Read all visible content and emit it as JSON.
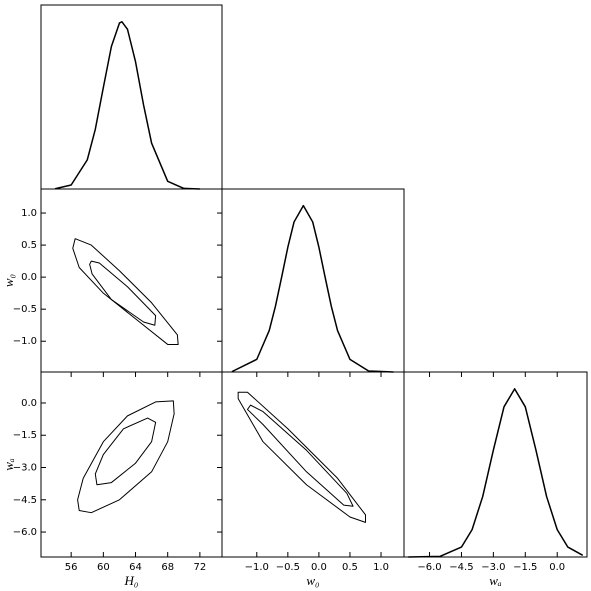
{
  "chart_data": [
    {
      "type": "line",
      "color": "#000000",
      "xlim": [
        52.25,
        74.75
      ],
      "ylim": [
        0,
        1.1
      ],
      "x": [
        54,
        56,
        58,
        59,
        60,
        61,
        62,
        62.3,
        63,
        64,
        65,
        66,
        68,
        70,
        72
      ],
      "values": [
        0.0015,
        0.024,
        0.174,
        0.357,
        0.607,
        0.852,
        0.992,
        1,
        0.955,
        0.761,
        0.502,
        0.274,
        0.046,
        0.0037,
        0.0001
      ]
    },
    {
      "type": "contour",
      "color": "#000000",
      "xlim": [
        52.25,
        74.75
      ],
      "ylim": [
        -1.48,
        1.375
      ],
      "ylabel": "w₀",
      "yticks": [
        {
          "value": 1.0,
          "label": "1.0"
        },
        {
          "value": 0.5,
          "label": "0.5"
        },
        {
          "value": 0.0,
          "label": "0.0"
        },
        {
          "value": -0.5,
          "label": "−0.5"
        },
        {
          "value": -1.0,
          "label": "−1.0"
        }
      ],
      "contours": [
        {
          "x": [
            56.5,
            58.5,
            62,
            66,
            69.2,
            69.3,
            68,
            64.5,
            60,
            57,
            56.2
          ],
          "y": [
            0.6,
            0.5,
            0.1,
            -0.4,
            -0.9,
            -1.05,
            -1.05,
            -0.7,
            -0.25,
            0.15,
            0.45
          ]
        },
        {
          "x": [
            58.5,
            59.5,
            63,
            66.5,
            66.4,
            65,
            61,
            58.6,
            58.3
          ],
          "y": [
            0.25,
            0.22,
            -0.15,
            -0.6,
            -0.75,
            -0.7,
            -0.35,
            0.05,
            0.2
          ]
        }
      ]
    },
    {
      "type": "line",
      "color": "#000000",
      "xlim": [
        -1.56,
        1.37
      ],
      "ylim": [
        0,
        1.1
      ],
      "x": [
        -1.4,
        -1.0,
        -0.8,
        -0.7,
        -0.6,
        -0.5,
        -0.4,
        -0.25,
        -0.1,
        0,
        0.1,
        0.2,
        0.3,
        0.5,
        0.8,
        1.2
      ],
      "values": [
        0.0023,
        0.076,
        0.249,
        0.395,
        0.57,
        0.75,
        0.902,
        1,
        0.902,
        0.75,
        0.57,
        0.395,
        0.249,
        0.076,
        0.006,
        0.0001
      ]
    },
    {
      "type": "contour",
      "color": "#000000",
      "xlim": [
        52.25,
        74.75
      ],
      "ylim": [
        -7.16,
        1.44
      ],
      "xlabel": "H₀",
      "ylabel": "wₐ",
      "xticks": [
        56,
        60,
        64,
        68,
        72
      ],
      "yticks": [
        {
          "value": 0.0,
          "label": "0.0"
        },
        {
          "value": -1.5,
          "label": "−1.5"
        },
        {
          "value": -3.0,
          "label": "−3.0"
        },
        {
          "value": -4.5,
          "label": "−4.5"
        },
        {
          "value": -6.0,
          "label": "−6.0"
        }
      ],
      "contours": [
        {
          "x": [
            56.8,
            57.5,
            60,
            63,
            66.5,
            68.7,
            68.8,
            68,
            66,
            62,
            58.5,
            57
          ],
          "y": [
            -4.5,
            -3.5,
            -1.8,
            -0.6,
            0.05,
            0.1,
            -0.5,
            -1.8,
            -3.2,
            -4.5,
            -5.1,
            -5.0
          ]
        },
        {
          "x": [
            59,
            60,
            62.5,
            65.5,
            66.5,
            66,
            64,
            61,
            59.2
          ],
          "y": [
            -3.3,
            -2.4,
            -1.2,
            -0.7,
            -0.9,
            -1.8,
            -2.8,
            -3.7,
            -3.8
          ]
        }
      ]
    },
    {
      "type": "contour",
      "color": "#000000",
      "xlim": [
        -1.56,
        1.37
      ],
      "ylim": [
        -7.16,
        1.44
      ],
      "xlabel": "w₀",
      "xticks": [
        {
          "value": -1.0,
          "label": "−1.0"
        },
        {
          "value": -0.5,
          "label": "−0.5"
        },
        {
          "value": 0.0,
          "label": "0.0"
        },
        {
          "value": 0.5,
          "label": "0.5"
        },
        {
          "value": 1.0,
          "label": "1.0"
        }
      ],
      "contours": [
        {
          "x": [
            -1.3,
            -1.15,
            -0.5,
            0.3,
            0.75,
            0.75,
            0.5,
            -0.2,
            -0.9,
            -1.3
          ],
          "y": [
            0.5,
            0.5,
            -1.2,
            -3.5,
            -5.2,
            -5.55,
            -5.3,
            -3.8,
            -1.8,
            0.2
          ]
        },
        {
          "x": [
            -1.1,
            -0.9,
            -0.2,
            0.45,
            0.55,
            0.4,
            -0.2,
            -0.9,
            -1.15
          ],
          "y": [
            -0.1,
            -0.4,
            -2.2,
            -4.2,
            -4.8,
            -4.75,
            -3.2,
            -1.0,
            -0.3
          ]
        }
      ]
    },
    {
      "type": "line",
      "color": "#000000",
      "xlim": [
        -7.2,
        1.4
      ],
      "ylim": [
        0,
        1.1
      ],
      "xlabel": "wₐ",
      "xticks": [
        {
          "value": -6.0,
          "label": "−6.0"
        },
        {
          "value": -4.5,
          "label": "−4.5"
        },
        {
          "value": -3.0,
          "label": "−3.0"
        },
        {
          "value": -1.5,
          "label": "−1.5"
        },
        {
          "value": 0.0,
          "label": "0.0"
        }
      ],
      "x": [
        -7,
        -5.5,
        -4.5,
        -4,
        -3.5,
        -3,
        -2.5,
        -2,
        -1.5,
        -1,
        -0.5,
        0,
        0.5,
        1.2
      ],
      "values": [
        0.0001,
        0.004,
        0.059,
        0.163,
        0.36,
        0.636,
        0.893,
        1,
        0.893,
        0.636,
        0.36,
        0.163,
        0.059,
        0.01
      ]
    }
  ]
}
